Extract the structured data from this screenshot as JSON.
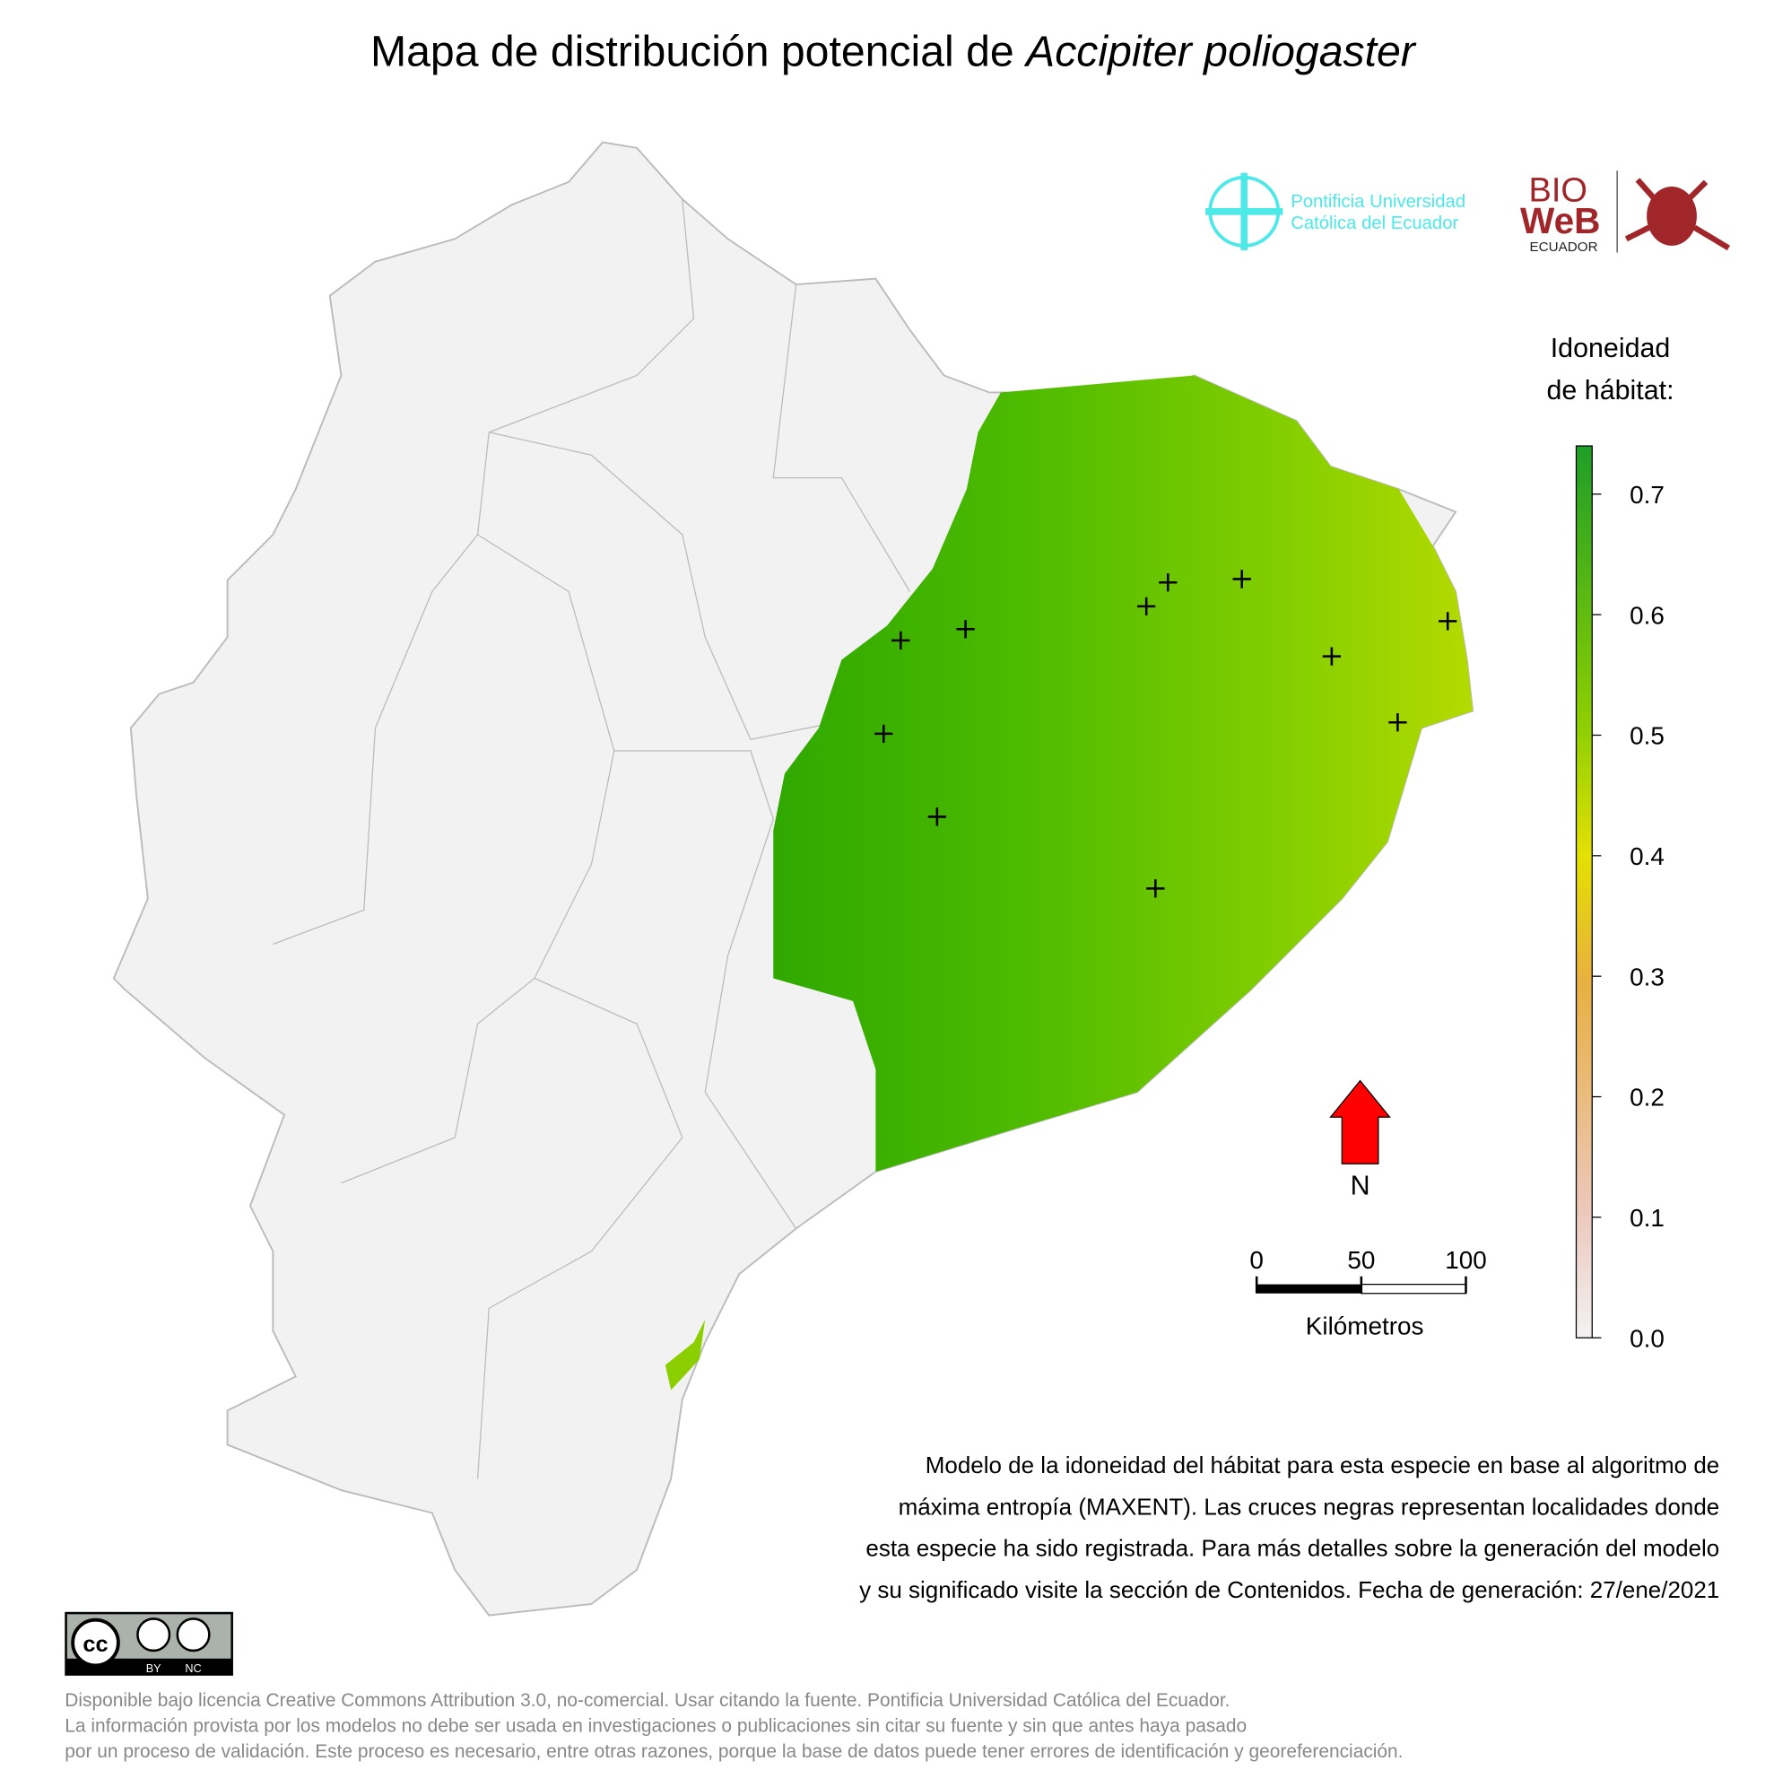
{
  "title": {
    "text": "Mapa de distribución potencial de",
    "species": "Accipiter poliogaster"
  },
  "logos": {
    "university": [
      "Pontificia Universidad",
      "Católica del Ecuador"
    ],
    "bioweb": [
      "BIO",
      "WeB",
      "ECUADOR"
    ]
  },
  "legend": {
    "title": [
      "Idoneidad",
      "de hábitat:"
    ],
    "ylim": [
      0,
      0.74
    ],
    "yticks": [
      {
        "value": 0,
        "label": "0.0"
      },
      0.1,
      0.2,
      0.3,
      0.4,
      0.5,
      0.6,
      0.7
    ]
  },
  "north": "N",
  "scale_bar": {
    "xlim": [
      0,
      100
    ],
    "ticks": [
      0,
      50,
      100
    ],
    "label": "Kilómetros"
  },
  "description": [
    "Modelo de la idoneidad del hábitat para esta especie en base al algoritmo de",
    "máxima entropía (MAXENT). Las cruces negras representan localidades donde",
    "esta especie ha sido registrada. Para más detalles sobre la generación del modelo",
    "y su significado visite la sección de Contenidos. Fecha de generación: 27/ene/2021"
  ],
  "license": {
    "badge": [
      "cc",
      "BY",
      "NC"
    ],
    "text": [
      "Disponible bajo licencia Creative Commons Attribution 3.0, no-comercial. Usar citando la fuente. Pontificia Universidad Católica del Ecuador.",
      "La información provista por los modelos no debe ser usada en investigaciones o publicaciones sin citar su fuente y sin que antes haya pasado",
      "por un proceso de validación. Este proceso es necesario, entre otras razones, porque la base de datos puede tener errores de identificación y georeferenciación."
    ]
  }
}
